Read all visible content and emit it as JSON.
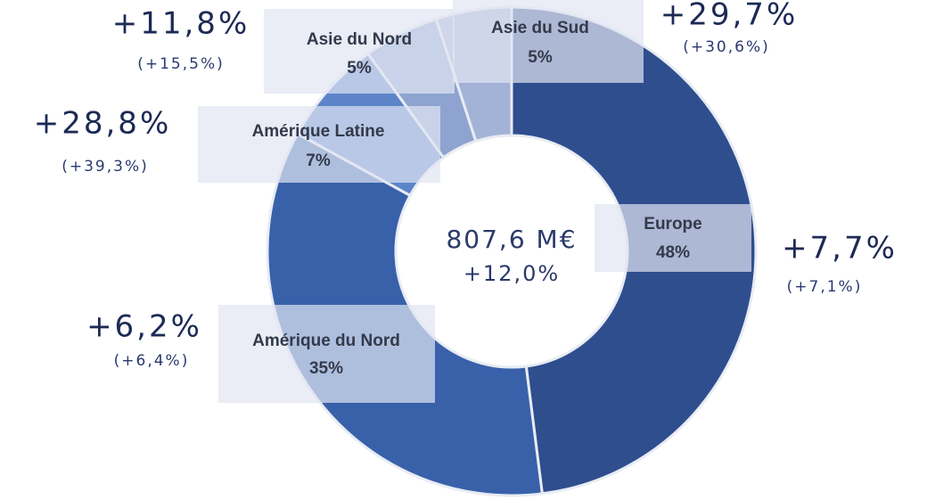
{
  "chart_data": {
    "type": "donut",
    "categories": [
      "Europe",
      "Amérique du Nord",
      "Amérique Latine",
      "Asie du Nord",
      "Asie du Sud"
    ],
    "values": [
      48,
      35,
      7,
      5,
      5
    ],
    "value_labels": [
      "48%",
      "35%",
      "7%",
      "5%",
      "5%"
    ],
    "colors": [
      "#2f4e8e",
      "#3861aa",
      "#5d84c9",
      "#8ea3cf",
      "#a3b3d8"
    ],
    "growth": [
      "+7,7%",
      "+6,2%",
      "+28,8%",
      "+11,8%",
      "+29,7%"
    ],
    "growth_detail": [
      "(+7,1%)",
      "(+6,4%)",
      "(+39,3%)",
      "(+15,5%)",
      "(+30,6%)"
    ],
    "center_labels": [
      "807,6 M€",
      "+12,0%"
    ]
  }
}
